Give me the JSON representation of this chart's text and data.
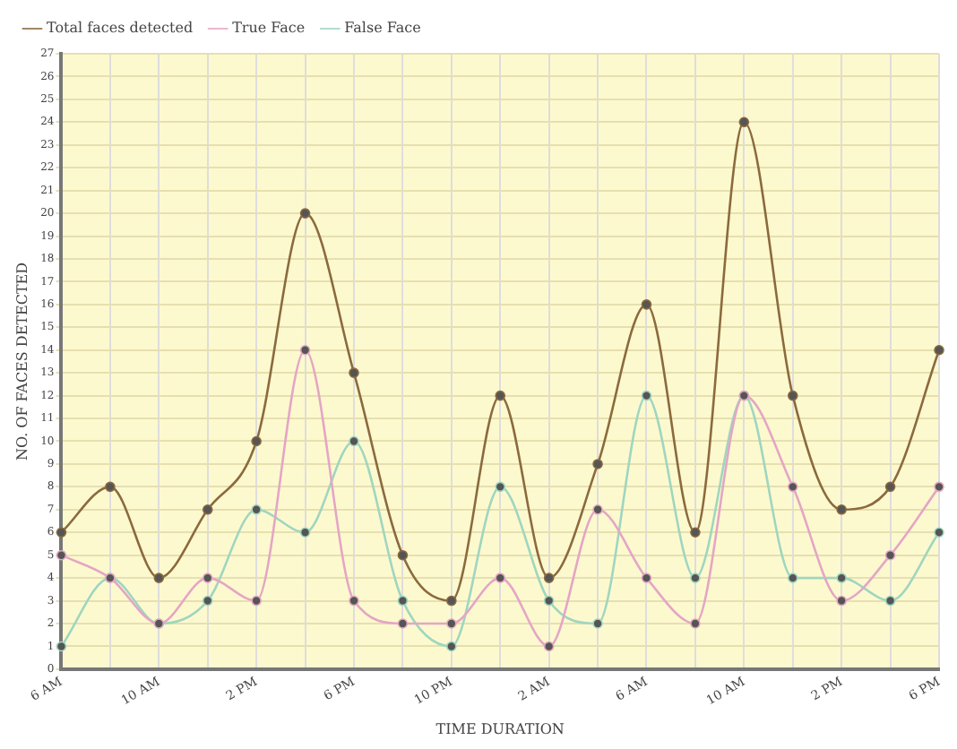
{
  "chart_data": {
    "type": "line",
    "xlabel": "TIME DURATION",
    "ylabel": "NO. OF FACES DETECTED",
    "categories": [
      "6 AM",
      null,
      "10 AM",
      null,
      "2 PM",
      null,
      "6 PM",
      null,
      "10 PM",
      null,
      "2 AM",
      null,
      "6 AM",
      null,
      "10 AM",
      null,
      "2 PM",
      null,
      "6 PM"
    ],
    "series": [
      {
        "name": "Total faces detected",
        "color": "#8b6a3e",
        "values": [
          6,
          8,
          4,
          7,
          10,
          20,
          13,
          5,
          3,
          12,
          4,
          9,
          16,
          6,
          24,
          12,
          7,
          8,
          14
        ]
      },
      {
        "name": "True Face",
        "color": "#e4a6c4",
        "values": [
          5,
          4,
          2,
          4,
          3,
          14,
          3,
          2,
          2,
          4,
          1,
          7,
          4,
          2,
          12,
          8,
          3,
          5,
          8
        ]
      },
      {
        "name": "False Face",
        "color": "#9fd6bf",
        "values": [
          1,
          4,
          2,
          3,
          7,
          6,
          10,
          3,
          1,
          8,
          3,
          2,
          12,
          4,
          12,
          4,
          4,
          3,
          6
        ]
      }
    ],
    "ylim": [
      0,
      27
    ],
    "yticks": [
      0,
      1,
      2,
      3,
      4,
      5,
      6,
      7,
      8,
      9,
      10,
      11,
      12,
      13,
      14,
      15,
      16,
      17,
      18,
      19,
      20,
      21,
      22,
      23,
      24,
      25,
      26,
      27
    ],
    "grid": true,
    "legend": "top left",
    "marker": "circle",
    "line_style": "solid"
  }
}
